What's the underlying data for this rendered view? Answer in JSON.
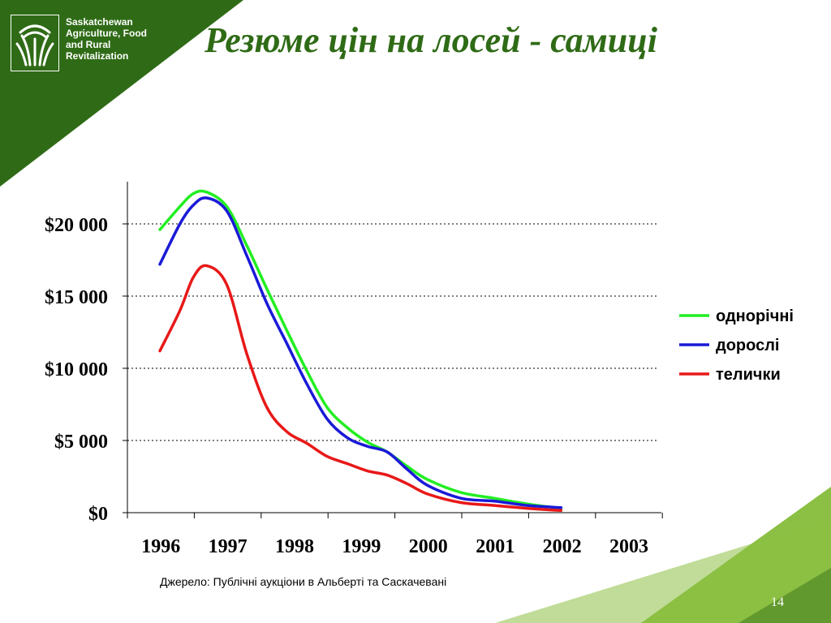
{
  "header": {
    "org_lines": [
      "Saskatchewan",
      "Agriculture, Food",
      "and Rural",
      "Revitalization"
    ],
    "title": "Резюме цін на лосей - самиці"
  },
  "footer": {
    "source": "Джерело: Публічні аукціони в Альберті та Саскачевані",
    "page_number": "14"
  },
  "colors": {
    "dark_green": "#2f6b16",
    "light_green": "#8cc044",
    "title_green": "#2f6b16"
  },
  "chart_data": {
    "type": "line",
    "title": "",
    "xlabel": "",
    "ylabel": "",
    "x_ticks": [
      "1996",
      "1997",
      "1998",
      "1999",
      "2000",
      "2001",
      "2002",
      "2003"
    ],
    "y_ticks": [
      "$0",
      "$5 000",
      "$10 000",
      "$15 000",
      "$20 000"
    ],
    "y_tick_values": [
      0,
      5000,
      10000,
      15000,
      20000
    ],
    "ylim": [
      0,
      23000
    ],
    "xlim": [
      1995.5,
      2003.5
    ],
    "grid": "horizontal dotted",
    "legend_position": "right",
    "series": [
      {
        "name": "однорічні",
        "color": "#22ee22",
        "points": [
          [
            1996.0,
            19600
          ],
          [
            1996.3,
            21200
          ],
          [
            1996.5,
            22100
          ],
          [
            1996.7,
            22200
          ],
          [
            1997.0,
            21200
          ],
          [
            1997.3,
            18500
          ],
          [
            1997.6,
            15500
          ],
          [
            1997.9,
            12600
          ],
          [
            1998.2,
            9800
          ],
          [
            1998.5,
            7300
          ],
          [
            1998.8,
            5900
          ],
          [
            1999.1,
            4900
          ],
          [
            1999.4,
            4200
          ],
          [
            1999.7,
            3200
          ],
          [
            2000.0,
            2300
          ],
          [
            2000.5,
            1400
          ],
          [
            2001.0,
            1000
          ],
          [
            2001.5,
            600
          ],
          [
            2002.0,
            300
          ]
        ]
      },
      {
        "name": "дорослі",
        "color": "#1a1ad8",
        "points": [
          [
            1996.0,
            17200
          ],
          [
            1996.3,
            20000
          ],
          [
            1996.5,
            21300
          ],
          [
            1996.7,
            21800
          ],
          [
            1997.0,
            20900
          ],
          [
            1997.3,
            17800
          ],
          [
            1997.6,
            14500
          ],
          [
            1997.9,
            11700
          ],
          [
            1998.2,
            8900
          ],
          [
            1998.5,
            6500
          ],
          [
            1998.8,
            5200
          ],
          [
            1999.1,
            4600
          ],
          [
            1999.4,
            4200
          ],
          [
            1999.7,
            3000
          ],
          [
            2000.0,
            1900
          ],
          [
            2000.5,
            1000
          ],
          [
            2001.0,
            800
          ],
          [
            2001.5,
            500
          ],
          [
            2002.0,
            350
          ]
        ]
      },
      {
        "name": "телички",
        "color": "#e81818",
        "points": [
          [
            1996.0,
            11200
          ],
          [
            1996.3,
            14000
          ],
          [
            1996.5,
            16300
          ],
          [
            1996.7,
            17100
          ],
          [
            1997.0,
            15800
          ],
          [
            1997.3,
            11000
          ],
          [
            1997.6,
            7300
          ],
          [
            1997.9,
            5600
          ],
          [
            1998.2,
            4800
          ],
          [
            1998.5,
            3900
          ],
          [
            1998.8,
            3400
          ],
          [
            1999.1,
            2900
          ],
          [
            1999.4,
            2600
          ],
          [
            1999.7,
            2000
          ],
          [
            2000.0,
            1300
          ],
          [
            2000.5,
            700
          ],
          [
            2001.0,
            500
          ],
          [
            2001.5,
            300
          ],
          [
            2002.0,
            150
          ]
        ]
      }
    ]
  }
}
